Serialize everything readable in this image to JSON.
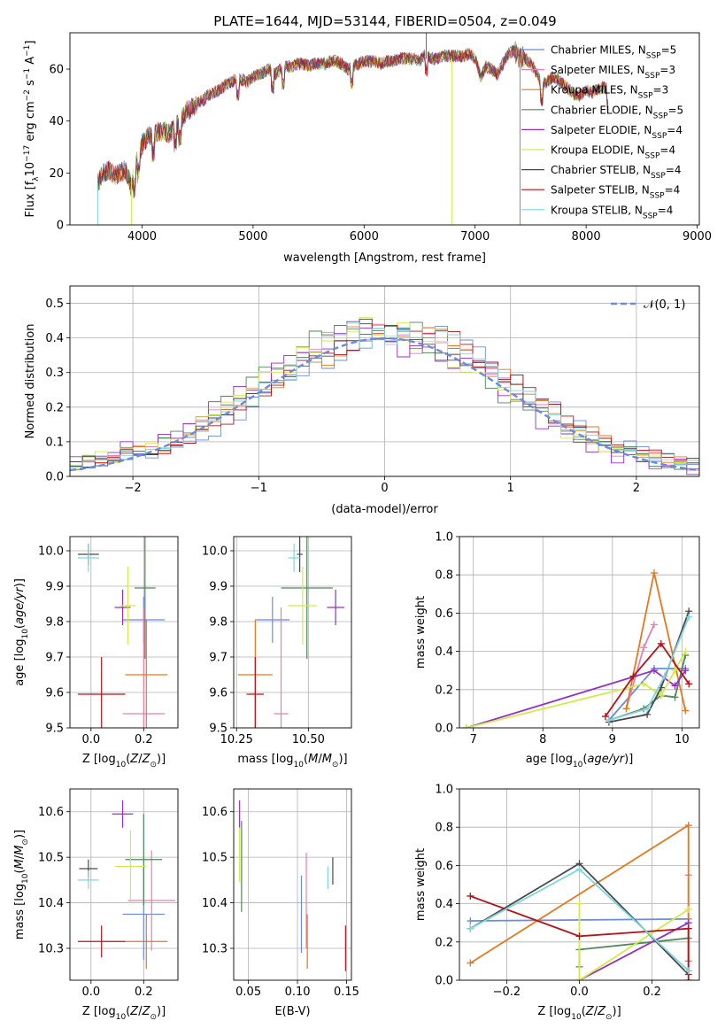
{
  "title": "PLATE=1644, MJD=53144, FIBERID=0504, z=0.049",
  "models": [
    {
      "key": "cm",
      "color": "#6b8be0",
      "label": "Chabrier MILES, N",
      "sub": "SSP",
      "suffix": "=5"
    },
    {
      "key": "sm",
      "color": "#e57fb5",
      "label": "Salpeter MILES, N",
      "sub": "SSP",
      "suffix": "=3"
    },
    {
      "key": "km",
      "color": "#e2791c",
      "label": "Kroupa MILES, N",
      "sub": "SSP",
      "suffix": "=3"
    },
    {
      "key": "ce",
      "color": "#4f8757",
      "label": "Chabrier ELODIE, N",
      "sub": "SSP",
      "suffix": "=5"
    },
    {
      "key": "se",
      "color": "#9430c0",
      "label": "Salpeter ELODIE, N",
      "sub": "SSP",
      "suffix": "=4"
    },
    {
      "key": "ke",
      "color": "#d3ea4a",
      "label": "Kroupa ELODIE, N",
      "sub": "SSP",
      "suffix": "=4"
    },
    {
      "key": "cs",
      "color": "#4a4a4a",
      "label": "Chabrier STELIB, N",
      "sub": "SSP",
      "suffix": "=4"
    },
    {
      "key": "ss",
      "color": "#b3141a",
      "label": "Salpeter STELIB, N",
      "sub": "SSP",
      "suffix": "=4"
    },
    {
      "key": "ks",
      "color": "#7fd6dc",
      "label": "Kroupa STELIB, N",
      "sub": "SSP",
      "suffix": "=4"
    }
  ],
  "chart_data": [
    {
      "id": "spectrum",
      "type": "line",
      "xlabel": "wavelength [Angstrom, rest frame]",
      "ylabel": "Flux [f",
      "xlim": [
        3350,
        9020
      ],
      "ylim": [
        0,
        74
      ],
      "xticks": [
        4000,
        5000,
        6000,
        7000,
        8000,
        9000
      ],
      "yticks": [
        0,
        20,
        40,
        60
      ],
      "spectrum_envelope": [
        [
          3600,
          16
        ],
        [
          3650,
          20
        ],
        [
          3700,
          21
        ],
        [
          3750,
          19
        ],
        [
          3800,
          20
        ],
        [
          3850,
          21
        ],
        [
          3900,
          15
        ],
        [
          3950,
          24
        ],
        [
          4000,
          31
        ],
        [
          4050,
          34
        ],
        [
          4100,
          34
        ],
        [
          4150,
          36
        ],
        [
          4200,
          36
        ],
        [
          4250,
          35
        ],
        [
          4300,
          38
        ],
        [
          4350,
          40
        ],
        [
          4400,
          44
        ],
        [
          4450,
          45
        ],
        [
          4500,
          47
        ],
        [
          4550,
          48
        ],
        [
          4600,
          50
        ],
        [
          4650,
          51
        ],
        [
          4700,
          52
        ],
        [
          4750,
          54
        ],
        [
          4800,
          55
        ],
        [
          4850,
          56
        ],
        [
          4900,
          56
        ],
        [
          4950,
          55
        ],
        [
          5000,
          57
        ],
        [
          5050,
          58
        ],
        [
          5100,
          59
        ],
        [
          5150,
          60
        ],
        [
          5200,
          58
        ],
        [
          5250,
          60
        ],
        [
          5300,
          61
        ],
        [
          5350,
          61
        ],
        [
          5400,
          62
        ],
        [
          5450,
          62
        ],
        [
          5500,
          61
        ],
        [
          5550,
          62
        ],
        [
          5600,
          62
        ],
        [
          5650,
          62
        ],
        [
          5700,
          63
        ],
        [
          5750,
          63
        ],
        [
          5800,
          62
        ],
        [
          5850,
          60
        ],
        [
          5900,
          61
        ],
        [
          5950,
          62
        ],
        [
          6000,
          63
        ],
        [
          6050,
          63
        ],
        [
          6100,
          63
        ],
        [
          6150,
          62
        ],
        [
          6200,
          63
        ],
        [
          6250,
          63
        ],
        [
          6300,
          64
        ],
        [
          6350,
          64
        ],
        [
          6400,
          64
        ],
        [
          6450,
          64
        ],
        [
          6500,
          63
        ],
        [
          6550,
          66
        ],
        [
          6600,
          64
        ],
        [
          6650,
          64
        ],
        [
          6700,
          65
        ],
        [
          6750,
          65
        ],
        [
          6800,
          65
        ],
        [
          6850,
          65
        ],
        [
          6900,
          65
        ],
        [
          6950,
          66
        ],
        [
          7000,
          64
        ],
        [
          7050,
          57
        ],
        [
          7100,
          61
        ],
        [
          7150,
          60
        ],
        [
          7200,
          58
        ],
        [
          7250,
          62
        ],
        [
          7300,
          66
        ],
        [
          7350,
          67
        ],
        [
          7400,
          65
        ],
        [
          7450,
          64
        ],
        [
          7500,
          62
        ],
        [
          7550,
          59
        ],
        [
          7600,
          54
        ],
        [
          7650,
          55
        ],
        [
          7700,
          57
        ],
        [
          7750,
          56
        ],
        [
          7800,
          54
        ],
        [
          7850,
          52
        ],
        [
          7900,
          50
        ],
        [
          7950,
          50
        ],
        [
          8000,
          52
        ],
        [
          8050,
          51
        ],
        [
          8100,
          52
        ],
        [
          8150,
          53
        ],
        [
          8200,
          52
        ]
      ]
    },
    {
      "id": "residual_hist",
      "type": "area",
      "xlabel": "(data-model)/error",
      "ylabel": "Normed distribution",
      "xlim": [
        -2.5,
        2.5
      ],
      "ylim": [
        0,
        0.55
      ],
      "xticks": [
        -2,
        -1,
        0,
        1,
        2
      ],
      "yticks": [
        0.0,
        0.1,
        0.2,
        0.3,
        0.4,
        0.5
      ],
      "reference_label": "𝒩(0, 1)",
      "bin_width": 0.1,
      "gaussian": {
        "mean": 0,
        "sigma": 1
      }
    },
    {
      "id": "age_vs_Z",
      "type": "scatter",
      "xlabel": "Z [log",
      "ylabel": "age  [log",
      "xlim": [
        -0.08,
        0.33
      ],
      "ylim": [
        9.5,
        10.04
      ],
      "xticks": [
        0.0,
        0.2
      ],
      "yticks": [
        9.5,
        9.6,
        9.7,
        9.8,
        9.9,
        10.0
      ],
      "points": [
        {
          "m": "cm",
          "x": 0.2,
          "y": 9.805,
          "xerr": 0.08,
          "yerr": 0.065
        },
        {
          "m": "sm",
          "x": 0.2,
          "y": 9.54,
          "xerr": 0.08,
          "yerr": 0.3
        },
        {
          "m": "km",
          "x": 0.21,
          "y": 9.65,
          "xerr": 0.08,
          "yerr": 0.155
        },
        {
          "m": "ce",
          "x": 0.205,
          "y": 9.895,
          "xerr": 0.04,
          "yerr": 0.2
        },
        {
          "m": "se",
          "x": 0.12,
          "y": 9.84,
          "xerr": 0.03,
          "yerr": 0.05
        },
        {
          "m": "ke",
          "x": 0.14,
          "y": 9.845,
          "xerr": 0.03,
          "yerr": 0.11
        },
        {
          "m": "cs",
          "x": -0.01,
          "y": 9.99,
          "xerr": 0.04,
          "yerr": 0.03
        },
        {
          "m": "ss",
          "x": 0.04,
          "y": 9.595,
          "xerr": 0.09,
          "yerr": 0.105
        },
        {
          "m": "ks",
          "x": -0.01,
          "y": 9.98,
          "xerr": 0.04,
          "yerr": 0.04
        }
      ]
    },
    {
      "id": "age_vs_mass",
      "type": "scatter",
      "xlabel": "mass [log",
      "ylabel": "",
      "xlim": [
        10.24,
        10.65
      ],
      "ylim": [
        9.5,
        10.04
      ],
      "xticks": [
        10.25,
        10.5
      ],
      "yticks": [
        9.5,
        9.6,
        9.7,
        9.8,
        9.9,
        10.0
      ],
      "points": [
        {
          "m": "cm",
          "x": 10.375,
          "y": 9.805,
          "xerr": 0.06,
          "yerr": 0.065
        },
        {
          "m": "sm",
          "x": 10.405,
          "y": 9.54,
          "xerr": 0.025,
          "yerr": 0.3
        },
        {
          "m": "km",
          "x": 10.315,
          "y": 9.65,
          "xerr": 0.06,
          "yerr": 0.155
        },
        {
          "m": "ce",
          "x": 10.495,
          "y": 9.895,
          "xerr": 0.09,
          "yerr": 0.2
        },
        {
          "m": "se",
          "x": 10.595,
          "y": 9.84,
          "xerr": 0.03,
          "yerr": 0.05
        },
        {
          "m": "ke",
          "x": 10.48,
          "y": 9.845,
          "xerr": 0.05,
          "yerr": 0.11
        },
        {
          "m": "cs",
          "x": 10.47,
          "y": 9.99,
          "xerr": 0.01,
          "yerr": 0.05
        },
        {
          "m": "ss",
          "x": 10.315,
          "y": 9.595,
          "xerr": 0.03,
          "yerr": 0.105
        },
        {
          "m": "ks",
          "x": 10.45,
          "y": 9.98,
          "xerr": 0.02,
          "yerr": 0.04
        }
      ]
    },
    {
      "id": "weight_vs_age",
      "type": "line",
      "xlabel": "age  [log",
      "ylabel": "mass weight",
      "xlim": [
        6.8,
        10.25
      ],
      "ylim": [
        0,
        1.0
      ],
      "xticks": [
        7,
        8,
        9,
        10
      ],
      "yticks": [
        0.0,
        0.2,
        0.4,
        0.6,
        0.8,
        1.0
      ],
      "series": [
        {
          "m": "cm",
          "x": [
            8.95,
            9.6,
            10.05
          ],
          "y": [
            0.04,
            0.31,
            0.31
          ]
        },
        {
          "m": "sm",
          "x": [
            9.2,
            9.45,
            9.6
          ],
          "y": [
            0.1,
            0.42,
            0.54
          ]
        },
        {
          "m": "km",
          "x": [
            9.2,
            9.6,
            10.05
          ],
          "y": [
            0.1,
            0.81,
            0.09
          ]
        },
        {
          "m": "ce",
          "x": [
            8.95,
            9.45,
            9.7,
            9.9,
            10.05
          ],
          "y": [
            0.04,
            0.1,
            0.17,
            0.16,
            0.38
          ]
        },
        {
          "m": "se",
          "x": [
            6.9,
            9.6,
            9.9,
            10.05
          ],
          "y": [
            0.0,
            0.3,
            0.22,
            0.3
          ]
        },
        {
          "m": "ke",
          "x": [
            6.9,
            9.45,
            9.7,
            9.9,
            10.05
          ],
          "y": [
            0.0,
            0.23,
            0.17,
            0.3,
            0.4
          ]
        },
        {
          "m": "cs",
          "x": [
            8.95,
            9.5,
            9.7,
            10.1
          ],
          "y": [
            0.03,
            0.07,
            0.21,
            0.61
          ]
        },
        {
          "m": "ss",
          "x": [
            8.9,
            9.3,
            9.7,
            10.1
          ],
          "y": [
            0.06,
            0.27,
            0.44,
            0.23
          ]
        },
        {
          "m": "ks",
          "x": [
            8.95,
            9.5,
            9.75,
            10.1
          ],
          "y": [
            0.04,
            0.1,
            0.27,
            0.58
          ]
        }
      ]
    },
    {
      "id": "mass_vs_Z",
      "type": "scatter",
      "xlabel": "Z [log",
      "ylabel": "mass [log",
      "xlim": [
        -0.08,
        0.33
      ],
      "ylim": [
        10.23,
        10.65
      ],
      "xticks": [
        0.0,
        0.2
      ],
      "yticks": [
        10.3,
        10.4,
        10.5,
        10.6
      ],
      "points": [
        {
          "m": "cm",
          "x": 0.2,
          "y": 10.375,
          "xerr": 0.08,
          "yerr": 0.1
        },
        {
          "m": "sm",
          "x": 0.23,
          "y": 10.405,
          "xerr": 0.09,
          "yerr": 0.11
        },
        {
          "m": "km",
          "x": 0.21,
          "y": 10.315,
          "xerr": 0.08,
          "yerr": 0.06
        },
        {
          "m": "ce",
          "x": 0.2,
          "y": 10.495,
          "xerr": 0.07,
          "yerr": 0.1
        },
        {
          "m": "se",
          "x": 0.12,
          "y": 10.595,
          "xerr": 0.04,
          "yerr": 0.03
        },
        {
          "m": "ke",
          "x": 0.15,
          "y": 10.48,
          "xerr": 0.06,
          "yerr": 0.08
        },
        {
          "m": "cs",
          "x": -0.01,
          "y": 10.475,
          "xerr": 0.035,
          "yerr": 0.02
        },
        {
          "m": "ss",
          "x": 0.04,
          "y": 10.315,
          "xerr": 0.09,
          "yerr": 0.035
        },
        {
          "m": "ks",
          "x": -0.01,
          "y": 10.45,
          "xerr": 0.04,
          "yerr": 0.02
        }
      ]
    },
    {
      "id": "mass_vs_EBV",
      "type": "scatter",
      "xlabel": "E(B-V)",
      "ylabel": "",
      "xlim": [
        0.035,
        0.155
      ],
      "ylim": [
        10.23,
        10.65
      ],
      "xticks": [
        0.05,
        0.1,
        0.15
      ],
      "yticks": [
        10.3,
        10.4,
        10.5,
        10.6
      ],
      "points": [
        {
          "m": "cm",
          "x": 0.104,
          "y": 10.375,
          "xerr": 0,
          "yerr": 0.085
        },
        {
          "m": "sm",
          "x": 0.109,
          "y": 10.405,
          "xerr": 0,
          "yerr": 0.105
        },
        {
          "m": "km",
          "x": 0.11,
          "y": 10.315,
          "xerr": 0,
          "yerr": 0.06
        },
        {
          "m": "ce",
          "x": 0.043,
          "y": 10.48,
          "xerr": 0,
          "yerr": 0.1
        },
        {
          "m": "se",
          "x": 0.041,
          "y": 10.595,
          "xerr": 0,
          "yerr": 0.03
        },
        {
          "m": "ke",
          "x": 0.041,
          "y": 10.505,
          "xerr": 0,
          "yerr": 0.06
        },
        {
          "m": "cs",
          "x": 0.136,
          "y": 10.47,
          "xerr": 0,
          "yerr": 0.03
        },
        {
          "m": "ss",
          "x": 0.149,
          "y": 10.3,
          "xerr": 0,
          "yerr": 0.05
        },
        {
          "m": "ks",
          "x": 0.131,
          "y": 10.455,
          "xerr": 0,
          "yerr": 0.025
        }
      ]
    },
    {
      "id": "weight_vs_Z",
      "type": "line",
      "xlabel": "Z [log",
      "ylabel": "mass weight",
      "xlim": [
        -0.33,
        0.33
      ],
      "ylim": [
        0,
        1.0
      ],
      "xticks": [
        -0.2,
        0.0,
        0.2
      ],
      "yticks": [
        0.0,
        0.2,
        0.4,
        0.6,
        0.8,
        1.0
      ],
      "series": [
        {
          "m": "cm",
          "x": [
            -0.3,
            0.3
          ],
          "y": [
            0.31,
            0.32
          ]
        },
        {
          "m": "sm",
          "x": [
            0.3,
            0.3
          ],
          "y": [
            0.05,
            0.55
          ]
        },
        {
          "m": "km",
          "x": [
            -0.3,
            0.3,
            0.3
          ],
          "y": [
            0.09,
            0.81,
            0.1
          ]
        },
        {
          "m": "ce",
          "x": [
            0.0,
            0.0,
            0.3
          ],
          "y": [
            0.07,
            0.16,
            0.22
          ]
        },
        {
          "m": "se",
          "x": [
            0.0,
            0.3
          ],
          "y": [
            0.0,
            0.3
          ]
        },
        {
          "m": "ke",
          "x": [
            0.0,
            0.0,
            0.3
          ],
          "y": [
            0.4,
            0.0,
            0.37
          ]
        },
        {
          "m": "cs",
          "x": [
            -0.3,
            0.0,
            0.3
          ],
          "y": [
            0.27,
            0.61,
            0.03
          ]
        },
        {
          "m": "ss",
          "x": [
            -0.3,
            0.0,
            0.3,
            0.3
          ],
          "y": [
            0.44,
            0.23,
            0.27,
            0.0
          ]
        },
        {
          "m": "ks",
          "x": [
            -0.3,
            0.0,
            0.3
          ],
          "y": [
            0.27,
            0.58,
            0.05
          ]
        }
      ]
    }
  ]
}
